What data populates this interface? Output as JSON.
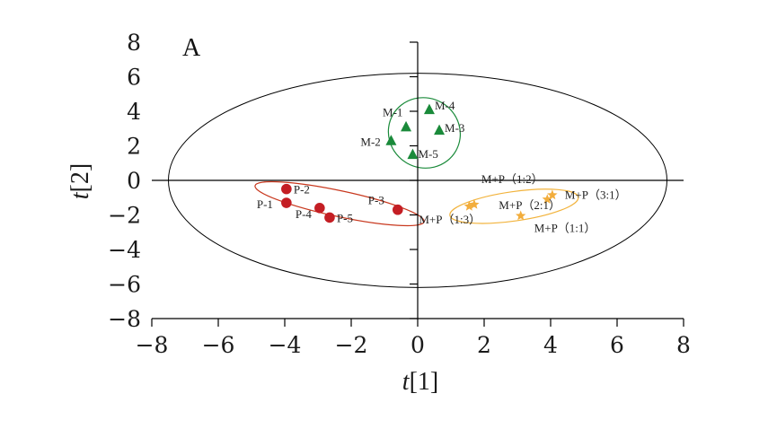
{
  "chart_data": {
    "type": "scatter",
    "panel_label": "A",
    "xlabel_italic": "t",
    "xlabel_rest": "[1]",
    "ylabel_italic": "t",
    "ylabel_rest": "[2]",
    "xlim": [
      -8,
      8
    ],
    "ylim": [
      -8,
      8
    ],
    "xticks": [
      -8,
      -6,
      -4,
      -2,
      0,
      2,
      4,
      6,
      8
    ],
    "yticks": [
      -8,
      -6,
      -4,
      -2,
      0,
      2,
      4,
      6,
      8
    ],
    "grid": false,
    "colors": {
      "M": "#1a8a3a",
      "P": "#c41e24",
      "MP": "#f2ad3c",
      "axis": "#000000"
    },
    "hotelling_ellipse": {
      "cx": 0,
      "cy": 0,
      "rx": 7.5,
      "ry": 6.2
    },
    "group_ellipses": [
      {
        "group": "M",
        "cx": 0.2,
        "cy": 2.75,
        "rx": 1.05,
        "ry": 2.1,
        "angle_deg": 60,
        "color": "#1a8a3a"
      },
      {
        "group": "P",
        "cx": -2.35,
        "cy": -1.35,
        "rx": 2.6,
        "ry": 0.75,
        "angle_deg": -12,
        "color": "#c8381e"
      },
      {
        "group": "MP",
        "cx": 2.9,
        "cy": -1.5,
        "rx": 1.95,
        "ry": 0.85,
        "angle_deg": 8,
        "color": "#f2b33c"
      }
    ],
    "series": [
      {
        "name": "M",
        "marker": "triangle",
        "points": [
          {
            "label": "M-1",
            "x": -0.35,
            "y": 3.1
          },
          {
            "label": "M-4",
            "x": 0.35,
            "y": 4.1
          },
          {
            "label": "M-3",
            "x": 0.65,
            "y": 2.9
          },
          {
            "label": "M-2",
            "x": -0.8,
            "y": 2.3
          },
          {
            "label": "M-5",
            "x": -0.15,
            "y": 1.5
          }
        ]
      },
      {
        "name": "P",
        "marker": "circle",
        "points": [
          {
            "label": "P-2",
            "x": -3.95,
            "y": -0.5
          },
          {
            "label": "P-1",
            "x": -3.95,
            "y": -1.3
          },
          {
            "label": "P-4",
            "x": -2.95,
            "y": -1.6
          },
          {
            "label": "P-5",
            "x": -2.65,
            "y": -2.15
          },
          {
            "label": "P-3",
            "x": -0.6,
            "y": -1.7
          }
        ]
      },
      {
        "name": "M+P",
        "marker": "star",
        "points": [
          {
            "label": "M+P（1:2）",
            "x": 1.7,
            "y": -1.4
          },
          {
            "label": "M+P（2:1）",
            "x": 3.9,
            "y": -1.1
          },
          {
            "label": "M+P（3:1）",
            "x": 4.05,
            "y": -0.85
          },
          {
            "label": "M+P（1:1）",
            "x": 3.1,
            "y": -2.05
          },
          {
            "label": "M+P（1:3）",
            "x": 1.55,
            "y": -1.5
          }
        ]
      }
    ]
  }
}
